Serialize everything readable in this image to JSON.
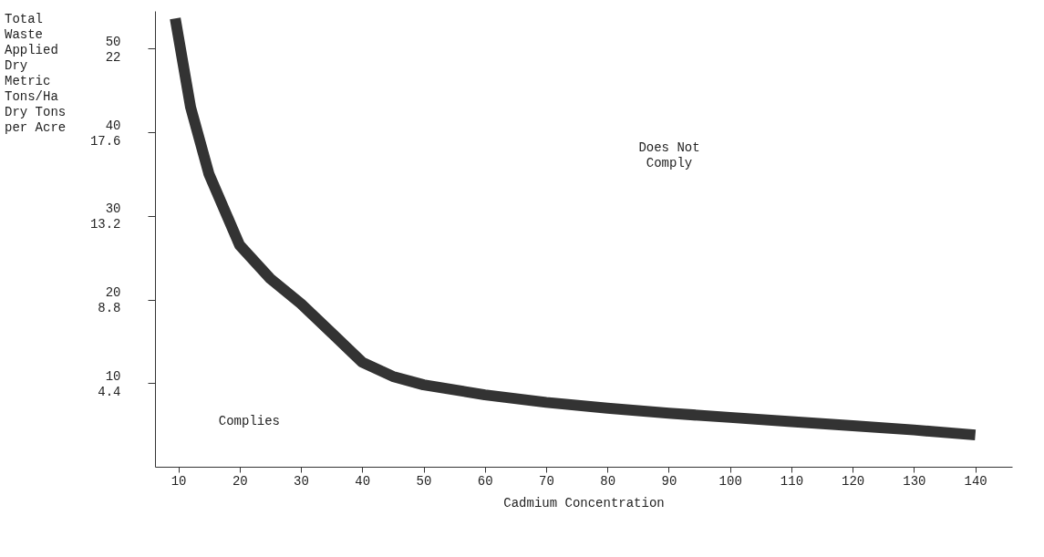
{
  "chart_data": {
    "type": "line",
    "xlabel": "Cadmium Concentration",
    "x": [
      9.5,
      12,
      15,
      20,
      25,
      30,
      35,
      40,
      45,
      50,
      60,
      70,
      80,
      90,
      100,
      110,
      120,
      130,
      140
    ],
    "series": [
      {
        "color": "#333333",
        "values": [
          53.6,
          43,
          35,
          26.5,
          22.5,
          19.5,
          16,
          12.5,
          10.8,
          9.8,
          8.6,
          7.7,
          7.0,
          6.4,
          5.9,
          5.4,
          4.9,
          4.4,
          3.8
        ]
      }
    ],
    "xlim": [
      6.2,
      146
    ],
    "ylim": [
      0,
      54.5
    ],
    "y2lim": [
      0,
      23.98
    ],
    "xticks": [
      10,
      20,
      30,
      40,
      50,
      60,
      70,
      80,
      90,
      100,
      110,
      120,
      130,
      140
    ],
    "yticks": [
      10,
      20,
      30,
      40,
      50
    ],
    "y2ticks": [
      4.4,
      8.8,
      13.2,
      17.6,
      22
    ],
    "annotations": [
      "Does Not\nComply",
      "Complies",
      "Total\nWaste\nApplied\nDry\nMetric\nTons/Ha\nDry Tons\nper Acre"
    ],
    "grid": false,
    "marker": "none",
    "line_style": "solid"
  }
}
